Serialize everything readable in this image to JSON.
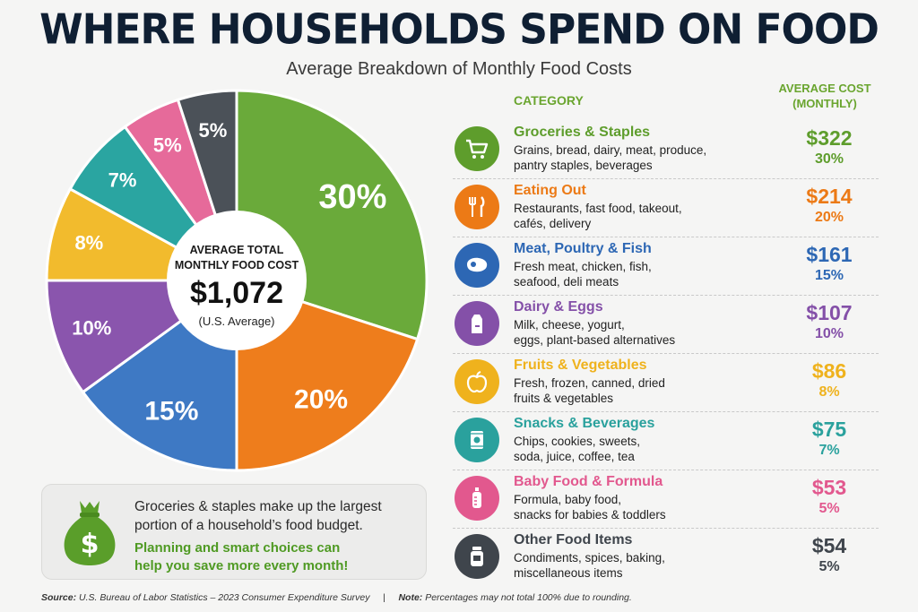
{
  "header": {
    "title": "WHERE HOUSEHOLDS SPEND ON FOOD",
    "subtitle": "Average Breakdown of Monthly Food Costs"
  },
  "table_headers": {
    "category": "CATEGORY",
    "cost_line1": "AVERAGE COST",
    "cost_line2": "(MONTHLY)"
  },
  "center": {
    "line1": "AVERAGE TOTAL",
    "line2": "MONTHLY FOOD COST",
    "amount": "$1,072",
    "note": "(U.S. Average)"
  },
  "chart_data": {
    "type": "pie",
    "slices": [
      {
        "label": "30%",
        "value": 30,
        "color": "#6aaa3a"
      },
      {
        "label": "20%",
        "value": 20,
        "color": "#ee7d1c"
      },
      {
        "label": "15%",
        "value": 15,
        "color": "#3e79c4"
      },
      {
        "label": "10%",
        "value": 10,
        "color": "#8a55ad"
      },
      {
        "label": "8%",
        "value": 8,
        "color": "#f2bb2d"
      },
      {
        "label": "7%",
        "value": 7,
        "color": "#2aa5a1"
      },
      {
        "label": "5%",
        "value": 5,
        "color": "#e66a9a"
      },
      {
        "label": "5%",
        "value": 5,
        "color": "#4b5158"
      }
    ]
  },
  "categories": [
    {
      "name": "Groceries & Staples",
      "desc1": "Grains, bread, dairy, meat, produce,",
      "desc2": "pantry staples, beverages",
      "amount": "$322",
      "pct": "30%",
      "color": "#5e9d2c",
      "icon": "shopping-cart-icon"
    },
    {
      "name": "Eating Out",
      "desc1": "Restaurants, fast food, takeout,",
      "desc2": "cafés, delivery",
      "amount": "$214",
      "pct": "20%",
      "color": "#ec7a16",
      "icon": "fork-knife-icon"
    },
    {
      "name": "Meat, Poultry & Fish",
      "desc1": "Fresh meat, chicken, fish,",
      "desc2": "seafood, deli meats",
      "amount": "$161",
      "pct": "15%",
      "color": "#2d67b4",
      "icon": "steak-icon"
    },
    {
      "name": "Dairy & Eggs",
      "desc1": "Milk, cheese, yogurt,",
      "desc2": "eggs, plant-based alternatives",
      "amount": "$107",
      "pct": "10%",
      "color": "#8450a8",
      "icon": "milk-carton-icon"
    },
    {
      "name": "Fruits & Vegetables",
      "desc1": "Fresh, frozen, canned, dried",
      "desc2": "fruits & vegetables",
      "amount": "$86",
      "pct": "8%",
      "color": "#efb21d",
      "icon": "apple-icon"
    },
    {
      "name": "Snacks & Beverages",
      "desc1": "Chips, cookies, sweets,",
      "desc2": "soda, juice, coffee, tea",
      "amount": "$75",
      "pct": "7%",
      "color": "#2aa19d",
      "icon": "snack-bag-icon"
    },
    {
      "name": "Baby Food & Formula",
      "desc1": "Formula, baby food,",
      "desc2": "snacks for babies & toddlers",
      "amount": "$53",
      "pct": "5%",
      "color": "#e2588e",
      "icon": "baby-bottle-icon"
    },
    {
      "name": "Other Food Items",
      "desc1": "Condiments, spices, baking,",
      "desc2": "miscellaneous items",
      "amount": "$54",
      "pct": "5%",
      "color": "#3f454c",
      "icon": "jar-icon"
    }
  ],
  "callout": {
    "line1": "Groceries & staples make up the largest",
    "line2": "portion of a household’s food budget.",
    "line3": "Planning and smart choices can",
    "line4": "help you save more every month!"
  },
  "footer": {
    "source_label": "Source:",
    "source_text": "U.S. Bureau of Labor Statistics – 2023 Consumer Expenditure Survey",
    "separator": "|",
    "note_label": "Note:",
    "note_text": "Percentages may not total 100% due to rounding."
  }
}
